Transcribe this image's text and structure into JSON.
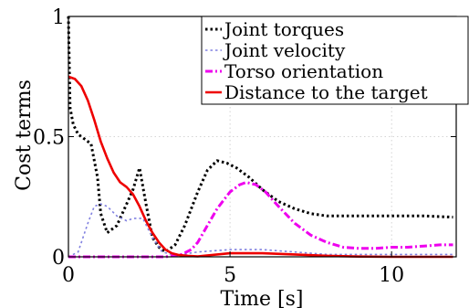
{
  "chart_data": {
    "type": "line",
    "title": "",
    "xlabel": "Time [s]",
    "ylabel": "Cost terms",
    "xlim": [
      0,
      12
    ],
    "ylim": [
      0,
      1
    ],
    "xticks": [
      0,
      5,
      10
    ],
    "yticks": [
      0,
      0.5,
      1
    ],
    "xtick_labels": [
      "0",
      "5",
      "10"
    ],
    "ytick_labels": [
      "0",
      "0.5",
      "1"
    ],
    "grid": true,
    "legend_position": "top-right",
    "series": [
      {
        "name": "Joint torques",
        "color": "#000000",
        "dash": "dotted",
        "x": [
          0,
          0.05,
          0.15,
          0.3,
          0.5,
          0.7,
          0.9,
          1.0,
          1.2,
          1.5,
          1.8,
          2.0,
          2.2,
          2.4,
          2.6,
          2.8,
          3.0,
          3.3,
          3.6,
          4.0,
          4.3,
          4.6,
          4.9,
          5.2,
          5.6,
          6.0,
          6.5,
          7.0,
          7.5,
          8.0,
          8.5,
          9.0,
          10.0,
          11.0,
          11.9
        ],
        "y": [
          1.0,
          0.62,
          0.55,
          0.51,
          0.49,
          0.47,
          0.33,
          0.18,
          0.1,
          0.13,
          0.22,
          0.28,
          0.37,
          0.22,
          0.08,
          0.04,
          0.02,
          0.05,
          0.13,
          0.27,
          0.36,
          0.4,
          0.39,
          0.37,
          0.33,
          0.28,
          0.23,
          0.2,
          0.18,
          0.17,
          0.17,
          0.17,
          0.17,
          0.17,
          0.165
        ]
      },
      {
        "name": "Joint velocity",
        "color": "#8080e0",
        "dash": "dotted",
        "x": [
          0,
          0.3,
          0.6,
          0.8,
          1.0,
          1.2,
          1.5,
          1.8,
          2.0,
          2.3,
          2.6,
          2.9,
          3.2,
          3.5,
          4.0,
          5.0,
          6.0,
          7.0,
          8.0,
          9.0,
          10.0,
          11.9
        ],
        "y": [
          0.0,
          0.02,
          0.14,
          0.21,
          0.22,
          0.21,
          0.17,
          0.15,
          0.16,
          0.16,
          0.08,
          0.02,
          0.01,
          0.01,
          0.02,
          0.03,
          0.03,
          0.02,
          0.01,
          0.01,
          0.01,
          0.01
        ]
      },
      {
        "name": "Torso orientation",
        "color": "#ee00ee",
        "dash": "dashdot",
        "x": [
          0,
          1.0,
          2.0,
          3.0,
          3.5,
          3.8,
          4.0,
          4.3,
          4.6,
          5.0,
          5.3,
          5.5,
          5.8,
          6.1,
          6.5,
          7.0,
          7.5,
          8.0,
          8.5,
          9.0,
          9.5,
          10.0,
          10.5,
          11.0,
          11.5,
          11.9
        ],
        "y": [
          0.0,
          0.0,
          0.0,
          0.0,
          0.01,
          0.03,
          0.06,
          0.13,
          0.2,
          0.27,
          0.3,
          0.31,
          0.3,
          0.27,
          0.21,
          0.14,
          0.09,
          0.06,
          0.04,
          0.035,
          0.035,
          0.04,
          0.04,
          0.045,
          0.05,
          0.05
        ]
      },
      {
        "name": "Distance to the target",
        "color": "#ee0000",
        "dash": "solid",
        "x": [
          0,
          0.2,
          0.4,
          0.6,
          0.8,
          1.0,
          1.2,
          1.4,
          1.6,
          1.8,
          2.0,
          2.2,
          2.4,
          2.6,
          2.8,
          3.0,
          3.2,
          3.4,
          3.7,
          4.0,
          5.0,
          6.0,
          7.0,
          8.0,
          9.0,
          10.0,
          11.9
        ],
        "y": [
          0.75,
          0.74,
          0.71,
          0.65,
          0.57,
          0.48,
          0.41,
          0.35,
          0.31,
          0.29,
          0.26,
          0.21,
          0.15,
          0.1,
          0.06,
          0.03,
          0.015,
          0.008,
          0.004,
          0.002,
          0.015,
          0.015,
          0.01,
          0.004,
          0.001,
          0.0,
          0.0
        ]
      }
    ]
  }
}
